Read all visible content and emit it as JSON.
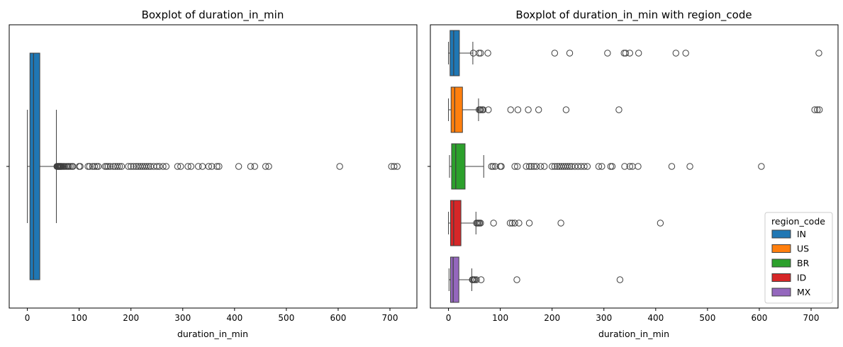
{
  "chart_data": [
    {
      "type": "boxplot",
      "title": "Boxplot of duration_in_min",
      "xlabel": "duration_in_min",
      "ylabel": "",
      "xlim": [
        -35,
        752
      ],
      "xticks": [
        0,
        100,
        200,
        300,
        400,
        500,
        600,
        700
      ],
      "orientation": "horizontal",
      "color": "#1f77b4",
      "boxes": [
        {
          "name": "",
          "whisker_low": 0,
          "q1": 5,
          "median": 12,
          "q3": 24,
          "whisker_high": 56,
          "fliers": [
            57,
            58,
            59,
            60,
            61,
            62,
            63,
            64,
            65,
            66,
            68,
            70,
            72,
            75,
            78,
            80,
            83,
            86,
            88,
            100,
            102,
            117,
            120,
            126,
            130,
            134,
            137,
            150,
            153,
            156,
            160,
            166,
            170,
            174,
            178,
            182,
            195,
            200,
            205,
            210,
            214,
            218,
            222,
            226,
            230,
            234,
            238,
            244,
            250,
            255,
            262,
            268,
            290,
            296,
            310,
            316,
            330,
            338,
            350,
            356,
            366,
            370,
            408,
            431,
            439,
            460,
            466,
            603,
            703,
            708,
            714
          ]
        }
      ]
    },
    {
      "type": "boxplot",
      "title": "Boxplot of duration_in_min with region_code",
      "xlabel": "duration_in_min",
      "ylabel": "",
      "xlim": [
        -35,
        752
      ],
      "xticks": [
        0,
        100,
        200,
        300,
        400,
        500,
        600,
        700
      ],
      "orientation": "horizontal",
      "legend": {
        "title": "region_code",
        "placement": "lower right"
      },
      "boxes": [
        {
          "name": "IN",
          "color": "#1f77b4",
          "whisker_low": 0,
          "q1": 3,
          "median": 10,
          "q3": 21,
          "whisker_high": 47,
          "fliers": [
            48,
            59,
            62,
            76,
            205,
            234,
            307,
            339,
            342,
            350,
            367,
            439,
            458,
            715
          ]
        },
        {
          "name": "US",
          "color": "#ff7f0e",
          "whisker_low": 0,
          "q1": 5,
          "median": 12,
          "q3": 27,
          "whisker_high": 58,
          "fliers": [
            59,
            61,
            62,
            65,
            67,
            77,
            120,
            134,
            154,
            174,
            227,
            329,
            707,
            712,
            716
          ]
        },
        {
          "name": "BR",
          "color": "#2ca02c",
          "whisker_low": 2,
          "q1": 6,
          "median": 14,
          "q3": 32,
          "whisker_high": 68,
          "fliers": [
            83,
            86,
            90,
            100,
            102,
            128,
            133,
            150,
            156,
            160,
            165,
            170,
            178,
            185,
            200,
            205,
            210,
            214,
            218,
            222,
            226,
            230,
            234,
            238,
            244,
            250,
            256,
            262,
            268,
            290,
            296,
            313,
            316,
            340,
            350,
            355,
            366,
            431,
            466,
            604
          ]
        },
        {
          "name": "ID",
          "color": "#d62728",
          "whisker_low": 0,
          "q1": 4,
          "median": 10,
          "q3": 24,
          "whisker_high": 53,
          "fliers": [
            54,
            56,
            58,
            60,
            62,
            87,
            119,
            123,
            128,
            136,
            156,
            217,
            409
          ]
        },
        {
          "name": "MX",
          "color": "#9467bd",
          "whisker_low": 1,
          "q1": 4,
          "median": 9,
          "q3": 20,
          "whisker_high": 45,
          "fliers": [
            46,
            47,
            49,
            51,
            54,
            63,
            132,
            331
          ]
        }
      ]
    }
  ]
}
